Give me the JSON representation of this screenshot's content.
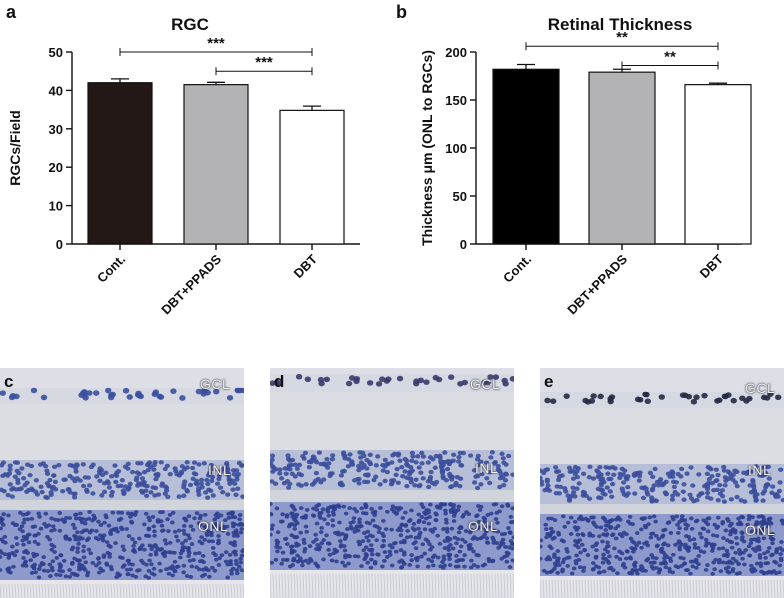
{
  "chart_data": [
    {
      "panel": "a",
      "type": "bar",
      "title": "RGC",
      "ylabel": "RGCs/Field",
      "xlabel": "",
      "categories": [
        "Cont.",
        "DBT+PPADS",
        "DBT"
      ],
      "values": [
        42,
        41.5,
        34.8
      ],
      "errors": [
        1.0,
        0.6,
        1.1
      ],
      "bar_colors": [
        "#231815",
        "#b3b3b5",
        "#ffffff"
      ],
      "ylim": [
        0,
        50
      ],
      "yticks": [
        0,
        10,
        20,
        30,
        40,
        50
      ],
      "significance": [
        {
          "from": 0,
          "to": 2,
          "label": "***",
          "y": 50
        },
        {
          "from": 1,
          "to": 2,
          "label": "***",
          "y": 45
        }
      ]
    },
    {
      "panel": "b",
      "type": "bar",
      "title": "Retinal Thickness",
      "ylabel": "Thickness μm (ONL to RGCs)",
      "xlabel": "",
      "categories": [
        "Cont.",
        "DBT+PPADS",
        "DBT"
      ],
      "values": [
        182,
        179,
        166
      ],
      "errors": [
        5,
        3,
        1.5
      ],
      "bar_colors": [
        "#000000",
        "#b3b3b5",
        "#ffffff"
      ],
      "ylim": [
        0,
        200
      ],
      "yticks": [
        0,
        50,
        100,
        150,
        200
      ],
      "significance": [
        {
          "from": 0,
          "to": 2,
          "label": "**",
          "y": 206
        },
        {
          "from": 1,
          "to": 2,
          "label": "**",
          "y": 186
        }
      ]
    }
  ],
  "micrographs": [
    {
      "panel": "c",
      "labels": {
        "gcl": "GCL",
        "inl": "INL",
        "onl": "ONL"
      }
    },
    {
      "panel": "d",
      "labels": {
        "gcl": "GCL",
        "inl": "INL",
        "onl": "ONL"
      }
    },
    {
      "panel": "e",
      "labels": {
        "gcl": "GCL",
        "inl": "INL",
        "onl": "ONL"
      }
    }
  ]
}
